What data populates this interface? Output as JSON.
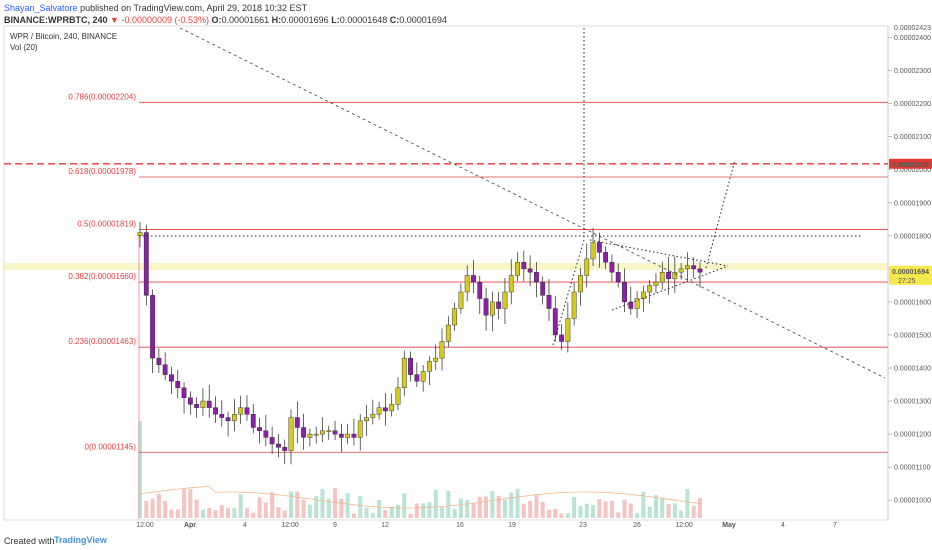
{
  "header": {
    "author": "Shayan_Salvatore",
    "published": "published on TradingView.com, April 29, 2018 10:32 EST",
    "symbol": "BINANCE:WPRBTC, 240",
    "change": "-0.00000009 (-0.53%)",
    "open_label": "O:",
    "open": "0.00001661",
    "high_label": "H:",
    "high": "0.00001696",
    "low_label": "L:",
    "low": "0.00001648",
    "close_label": "C:",
    "close": "0.00001694",
    "last": "0.00001694"
  },
  "legend": {
    "line1": "WPR / Bitcoin, 240, BINANCE",
    "line2": "Vol (20)"
  },
  "price_axis": {
    "labels": [
      "0.00002400",
      "0.00002300",
      "0.00002200",
      "0.00002100",
      "0.00002000",
      "0.00001900",
      "0.00001800",
      "0.00001700",
      "0.00001600",
      "0.00001500",
      "0.00001400",
      "0.00001300",
      "0.00001200",
      "0.00001100",
      "0.00001000"
    ],
    "current_price": "0.00001694",
    "countdown": "27:25",
    "target_price": "0.00002018",
    "top_partial": "0.00002423"
  },
  "time_axis": {
    "labels": [
      "12:00",
      "Apr",
      "4",
      "12:00",
      "9",
      "12",
      "16",
      "19",
      "23",
      "26",
      "12:00",
      "May",
      "4",
      "7"
    ]
  },
  "fib_levels": [
    {
      "label": "0.786(0.00002204)",
      "value": 2.204e-05
    },
    {
      "label": "0.618(0.00001978)",
      "value": 1.978e-05
    },
    {
      "label": "0.5(0.00001819)",
      "value": 1.819e-05
    },
    {
      "label": "0.382(0.00001660)",
      "value": 1.66e-05
    },
    {
      "label": "0.236(0.00001463)",
      "value": 1.463e-05
    },
    {
      "label": "0(0.00001145)",
      "value": 1.145e-05
    }
  ],
  "colors": {
    "up_body": "#d4c821",
    "down_body": "#8b1fa8",
    "fib_line": "#e04040",
    "target_line": "#e53935",
    "current_highlight": "#f3ef9a",
    "vol_up": "#a8dcc8",
    "vol_down": "#f4b3b3",
    "vol_ma": "#f2b78a",
    "axis_text": "#555555"
  },
  "footer": {
    "created_with": "Created with",
    "brand": "TradingView"
  },
  "chart_data": {
    "type": "candlestick",
    "title": "WPR / Bitcoin, 240, BINANCE",
    "y_scale": "linear",
    "ylim": [
      9.4e-06,
      2.435e-05
    ],
    "grid": false,
    "series": [
      {
        "name": "WPR/BTC",
        "points_close": [
          1.81e-05,
          1.62e-05,
          1.43e-05,
          1.41e-05,
          1.38e-05,
          1.36e-05,
          1.34e-05,
          1.31e-05,
          1.29e-05,
          1.28e-05,
          1.3e-05,
          1.28e-05,
          1.26e-05,
          1.25e-05,
          1.24e-05,
          1.26e-05,
          1.28e-05,
          1.26e-05,
          1.22e-05,
          1.21e-05,
          1.19e-05,
          1.17e-05,
          1.16e-05,
          1.15e-05,
          1.25e-05,
          1.22e-05,
          1.19e-05,
          1.2e-05,
          1.2e-05,
          1.21e-05,
          1.21e-05,
          1.2e-05,
          1.19e-05,
          1.2e-05,
          1.19e-05,
          1.24e-05,
          1.25e-05,
          1.26e-05,
          1.28e-05,
          1.27e-05,
          1.29e-05,
          1.34e-05,
          1.43e-05,
          1.38e-05,
          1.36e-05,
          1.39e-05,
          1.42e-05,
          1.43e-05,
          1.48e-05,
          1.53e-05,
          1.58e-05,
          1.63e-05,
          1.68e-05,
          1.66e-05,
          1.61e-05,
          1.56e-05,
          1.6e-05,
          1.58e-05,
          1.63e-05,
          1.68e-05,
          1.72e-05,
          1.7e-05,
          1.69e-05,
          1.66e-05,
          1.62e-05,
          1.58e-05,
          1.5e-05,
          1.48e-05,
          1.55e-05,
          1.63e-05,
          1.68e-05,
          1.73e-05,
          1.78e-05,
          1.75e-05,
          1.72e-05,
          1.69e-05,
          1.66e-05,
          1.6e-05,
          1.58e-05,
          1.61e-05,
          1.63e-05,
          1.65e-05,
          1.66e-05,
          1.69e-05,
          1.67e-05,
          1.69e-05,
          1.7e-05,
          1.71e-05,
          1.7e-05,
          1.69e-05
        ]
      }
    ],
    "volume_ma_period": 20,
    "current_close": 1.694e-05,
    "target": 2.018e-05
  }
}
